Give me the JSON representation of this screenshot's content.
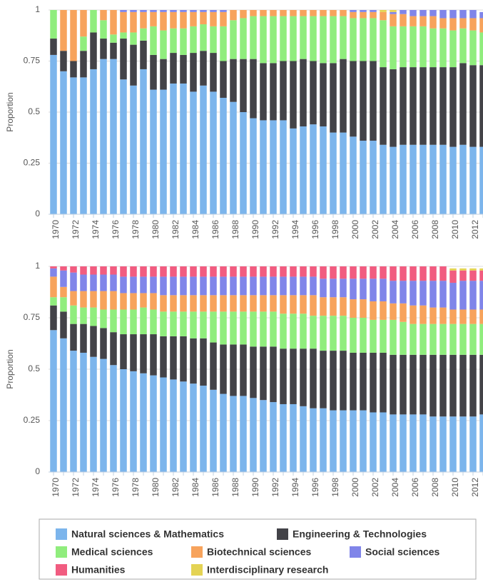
{
  "chart_data": [
    {
      "type": "stacked-bar",
      "y_label": "Proportion",
      "ylim": [
        0,
        1
      ],
      "yticks": [
        0,
        0.25,
        0.5,
        0.75,
        1
      ],
      "grid": true,
      "categories": [
        "1970",
        null,
        "1972",
        null,
        "1974",
        null,
        "1976",
        null,
        "1978",
        null,
        "1980",
        null,
        "1982",
        null,
        "1984",
        null,
        "1986",
        null,
        "1988",
        null,
        "1990",
        null,
        "1992",
        null,
        "1994",
        null,
        "1996",
        null,
        "1998",
        null,
        "2000",
        null,
        "2002",
        null,
        "2004",
        null,
        "2006",
        null,
        "2008",
        null,
        "2010",
        null,
        "2012",
        null
      ],
      "series": [
        {
          "name": "Natural sciences & Mathematics",
          "color": "#7cb5ec",
          "values": [
            0.78,
            0.7,
            0.67,
            0.67,
            0.71,
            0.76,
            0.76,
            0.66,
            0.63,
            0.71,
            0.61,
            0.61,
            0.64,
            0.64,
            0.6,
            0.63,
            0.6,
            0.57,
            0.55,
            0.5,
            0.47,
            0.46,
            0.46,
            0.46,
            0.42,
            0.43,
            0.44,
            0.43,
            0.4,
            0.4,
            0.38,
            0.36,
            0.36,
            0.34,
            0.33,
            0.34,
            0.34,
            0.34,
            0.34,
            0.34,
            0.33,
            0.34,
            0.33,
            0.33
          ]
        },
        {
          "name": "Engineering & Technologies",
          "color": "#434348",
          "values": [
            0.08,
            0.1,
            0.08,
            0.13,
            0.18,
            0.1,
            0.08,
            0.2,
            0.2,
            0.14,
            0.17,
            0.15,
            0.15,
            0.14,
            0.19,
            0.17,
            0.19,
            0.18,
            0.21,
            0.26,
            0.29,
            0.28,
            0.28,
            0.29,
            0.33,
            0.33,
            0.31,
            0.31,
            0.34,
            0.36,
            0.37,
            0.39,
            0.39,
            0.38,
            0.38,
            0.38,
            0.38,
            0.38,
            0.38,
            0.38,
            0.39,
            0.4,
            0.4,
            0.4
          ]
        },
        {
          "name": "Medical sciences",
          "color": "#90ed7d",
          "values": [
            0.14,
            0,
            0,
            0.07,
            0.11,
            0.09,
            0.04,
            0.03,
            0.06,
            0.06,
            0.14,
            0.14,
            0.12,
            0.13,
            0.13,
            0.13,
            0.13,
            0.17,
            0.19,
            0.2,
            0.21,
            0.23,
            0.23,
            0.22,
            0.22,
            0.21,
            0.22,
            0.23,
            0.23,
            0.21,
            0.21,
            0.21,
            0.21,
            0.23,
            0.21,
            0.2,
            0.2,
            0.2,
            0.19,
            0.19,
            0.18,
            0.17,
            0.17,
            0.16
          ]
        },
        {
          "name": "Biotechnical sciences",
          "color": "#f7a35c",
          "values": [
            0,
            0.2,
            0.25,
            0.13,
            0,
            0.05,
            0.12,
            0.1,
            0.1,
            0.08,
            0.07,
            0.09,
            0.08,
            0.08,
            0.07,
            0.06,
            0.07,
            0.07,
            0.05,
            0.04,
            0.03,
            0.03,
            0.03,
            0.03,
            0.03,
            0.03,
            0.03,
            0.03,
            0.03,
            0.03,
            0.03,
            0.03,
            0.03,
            0.04,
            0.06,
            0.06,
            0.05,
            0.05,
            0.06,
            0.05,
            0.06,
            0.05,
            0.06,
            0.07
          ]
        },
        {
          "name": "Social sciences",
          "color": "#8085e9",
          "values": [
            0,
            0,
            0,
            0,
            0,
            0,
            0,
            0.01,
            0.01,
            0.01,
            0.01,
            0.01,
            0.01,
            0.01,
            0.01,
            0.01,
            0.01,
            0.01,
            0,
            0,
            0,
            0,
            0,
            0,
            0,
            0,
            0,
            0,
            0,
            0,
            0.01,
            0.01,
            0.01,
            0,
            0.01,
            0.02,
            0.03,
            0.03,
            0.03,
            0.04,
            0.04,
            0.04,
            0.04,
            0.03
          ]
        },
        {
          "name": "Humanities",
          "color": "#f15c80",
          "values": [
            0,
            0,
            0,
            0,
            0,
            0,
            0,
            0,
            0,
            0,
            0,
            0,
            0,
            0,
            0,
            0,
            0,
            0,
            0,
            0,
            0,
            0,
            0,
            0,
            0,
            0,
            0,
            0,
            0,
            0,
            0,
            0,
            0,
            0,
            0,
            0,
            0,
            0,
            0,
            0,
            0,
            0,
            0,
            0
          ]
        },
        {
          "name": "Interdisciplinary research",
          "color": "#e4d354",
          "values": [
            0,
            0,
            0,
            0,
            0,
            0,
            0,
            0,
            0,
            0,
            0,
            0,
            0,
            0,
            0,
            0,
            0,
            0,
            0,
            0,
            0,
            0,
            0,
            0,
            0,
            0,
            0,
            0,
            0,
            0,
            0,
            0,
            0,
            0.01,
            0.01,
            0,
            0,
            0,
            0,
            0,
            0,
            0,
            0,
            0
          ]
        }
      ]
    },
    {
      "type": "stacked-bar",
      "y_label": "Proportion",
      "ylim": [
        0,
        1
      ],
      "yticks": [
        0,
        0.25,
        0.5,
        0.75,
        1
      ],
      "grid": true,
      "categories": [
        "1970",
        null,
        "1972",
        null,
        "1974",
        null,
        "1976",
        null,
        "1978",
        null,
        "1980",
        null,
        "1982",
        null,
        "1984",
        null,
        "1986",
        null,
        "1988",
        null,
        "1990",
        null,
        "1992",
        null,
        "1994",
        null,
        "1996",
        null,
        "1998",
        null,
        "2000",
        null,
        "2002",
        null,
        "2004",
        null,
        "2006",
        null,
        "2008",
        null,
        "2010",
        null,
        "2012",
        null
      ],
      "series": [
        {
          "name": "Natural sciences & Mathematics",
          "color": "#7cb5ec",
          "values": [
            0.69,
            0.65,
            0.59,
            0.58,
            0.56,
            0.55,
            0.52,
            0.5,
            0.49,
            0.48,
            0.47,
            0.46,
            0.45,
            0.44,
            0.43,
            0.42,
            0.4,
            0.38,
            0.37,
            0.37,
            0.36,
            0.35,
            0.34,
            0.33,
            0.33,
            0.32,
            0.31,
            0.31,
            0.3,
            0.3,
            0.3,
            0.3,
            0.29,
            0.29,
            0.28,
            0.28,
            0.28,
            0.28,
            0.27,
            0.27,
            0.27,
            0.27,
            0.27,
            0.28
          ]
        },
        {
          "name": "Engineering & Technologies",
          "color": "#434348",
          "values": [
            0.12,
            0.13,
            0.13,
            0.14,
            0.15,
            0.15,
            0.16,
            0.17,
            0.18,
            0.19,
            0.2,
            0.2,
            0.21,
            0.22,
            0.22,
            0.23,
            0.23,
            0.24,
            0.25,
            0.25,
            0.25,
            0.26,
            0.27,
            0.27,
            0.27,
            0.28,
            0.29,
            0.28,
            0.29,
            0.29,
            0.28,
            0.28,
            0.29,
            0.29,
            0.29,
            0.29,
            0.29,
            0.29,
            0.3,
            0.3,
            0.3,
            0.3,
            0.3,
            0.29
          ]
        },
        {
          "name": "Medical sciences",
          "color": "#90ed7d",
          "values": [
            0.04,
            0.07,
            0.09,
            0.08,
            0.09,
            0.09,
            0.11,
            0.12,
            0.12,
            0.13,
            0.12,
            0.12,
            0.12,
            0.12,
            0.13,
            0.13,
            0.15,
            0.16,
            0.16,
            0.16,
            0.17,
            0.17,
            0.17,
            0.17,
            0.17,
            0.17,
            0.16,
            0.17,
            0.17,
            0.17,
            0.17,
            0.17,
            0.16,
            0.16,
            0.17,
            0.16,
            0.15,
            0.15,
            0.15,
            0.15,
            0.15,
            0.15,
            0.15,
            0.15
          ]
        },
        {
          "name": "Biotechnical sciences",
          "color": "#f7a35c",
          "values": [
            0.1,
            0.05,
            0.07,
            0.08,
            0.08,
            0.09,
            0.09,
            0.08,
            0.08,
            0.07,
            0.08,
            0.08,
            0.08,
            0.08,
            0.08,
            0.08,
            0.08,
            0.08,
            0.08,
            0.08,
            0.08,
            0.08,
            0.08,
            0.09,
            0.09,
            0.09,
            0.1,
            0.09,
            0.09,
            0.09,
            0.09,
            0.09,
            0.09,
            0.09,
            0.08,
            0.09,
            0.09,
            0.09,
            0.08,
            0.08,
            0.07,
            0.07,
            0.07,
            0.07
          ]
        },
        {
          "name": "Social sciences",
          "color": "#8085e9",
          "values": [
            0.04,
            0.08,
            0.09,
            0.08,
            0.08,
            0.08,
            0.08,
            0.08,
            0.08,
            0.08,
            0.08,
            0.09,
            0.09,
            0.09,
            0.09,
            0.09,
            0.09,
            0.09,
            0.09,
            0.09,
            0.09,
            0.09,
            0.09,
            0.09,
            0.09,
            0.09,
            0.09,
            0.09,
            0.09,
            0.09,
            0.1,
            0.1,
            0.11,
            0.11,
            0.11,
            0.11,
            0.12,
            0.12,
            0.13,
            0.13,
            0.13,
            0.14,
            0.14,
            0.14
          ]
        },
        {
          "name": "Humanities",
          "color": "#f15c80",
          "values": [
            0.01,
            0.02,
            0.03,
            0.04,
            0.04,
            0.04,
            0.04,
            0.05,
            0.05,
            0.05,
            0.05,
            0.05,
            0.05,
            0.05,
            0.05,
            0.05,
            0.05,
            0.05,
            0.05,
            0.05,
            0.05,
            0.05,
            0.05,
            0.05,
            0.05,
            0.05,
            0.05,
            0.06,
            0.06,
            0.06,
            0.06,
            0.06,
            0.06,
            0.06,
            0.07,
            0.07,
            0.07,
            0.07,
            0.07,
            0.07,
            0.06,
            0.05,
            0.05,
            0.05
          ]
        },
        {
          "name": "Interdisciplinary research",
          "color": "#e4d354",
          "values": [
            0,
            0,
            0,
            0,
            0,
            0,
            0,
            0,
            0,
            0,
            0,
            0,
            0,
            0,
            0,
            0,
            0,
            0,
            0,
            0,
            0,
            0,
            0,
            0,
            0,
            0,
            0,
            0,
            0,
            0,
            0,
            0,
            0,
            0,
            0,
            0,
            0,
            0,
            0,
            0,
            0.01,
            0.01,
            0.01,
            0.01
          ]
        }
      ]
    }
  ]
}
